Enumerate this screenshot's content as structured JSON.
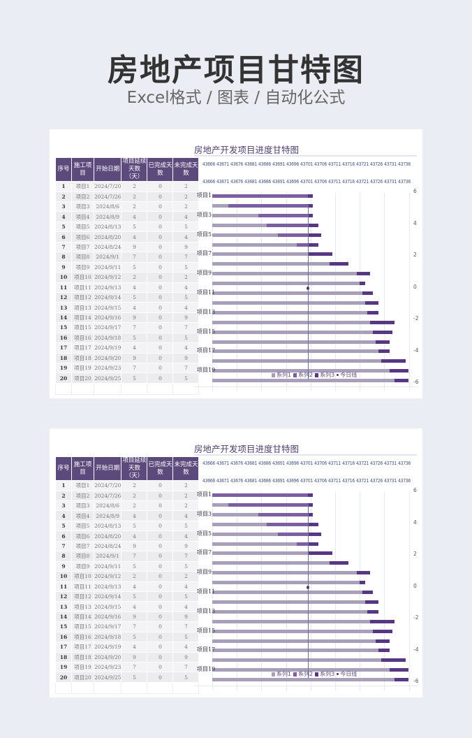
{
  "header": {
    "title": "房地产项目甘特图",
    "subtitle": "Excel格式 / 图表 / 自动化公式"
  },
  "colors": {
    "header": "#5c4a7c",
    "series1": "#a89fba",
    "series2": "#7b5fa0",
    "series3": "#573682",
    "today": "#4a3c6a"
  },
  "table": {
    "columns": [
      "序号",
      "施工项目",
      "开始日期",
      "项目延续天数（天）",
      "已完成天数",
      "未完成天数"
    ],
    "rows": [
      [
        "1",
        "项目1",
        "2024/7/20",
        "2",
        "0",
        "2"
      ],
      [
        "2",
        "项目2",
        "2024/7/26",
        "2",
        "0",
        "2"
      ],
      [
        "3",
        "项目3",
        "2024/8/6",
        "2",
        "0",
        "2"
      ],
      [
        "4",
        "项目4",
        "2024/8/9",
        "4",
        "0",
        "4"
      ],
      [
        "5",
        "项目5",
        "2024/8/13",
        "5",
        "0",
        "5"
      ],
      [
        "6",
        "项目6",
        "2024/8/20",
        "4",
        "0",
        "4"
      ],
      [
        "7",
        "项目7",
        "2024/8/24",
        "9",
        "0",
        "9"
      ],
      [
        "8",
        "项目8",
        "2024/9/1",
        "7",
        "0",
        "7"
      ],
      [
        "9",
        "项目9",
        "2024/9/11",
        "5",
        "0",
        "5"
      ],
      [
        "10",
        "项目10",
        "2024/9/12",
        "2",
        "0",
        "2"
      ],
      [
        "11",
        "项目11",
        "2024/9/13",
        "4",
        "0",
        "4"
      ],
      [
        "12",
        "项目12",
        "2024/9/14",
        "5",
        "0",
        "5"
      ],
      [
        "13",
        "项目13",
        "2024/9/15",
        "4",
        "0",
        "4"
      ],
      [
        "14",
        "项目14",
        "2024/9/16",
        "9",
        "0",
        "9"
      ],
      [
        "15",
        "项目15",
        "2024/9/17",
        "7",
        "0",
        "7"
      ],
      [
        "16",
        "项目16",
        "2024/9/18",
        "5",
        "0",
        "5"
      ],
      [
        "17",
        "项目17",
        "2024/9/19",
        "4",
        "0",
        "4"
      ],
      [
        "18",
        "项目18",
        "2024/9/20",
        "9",
        "0",
        "9"
      ],
      [
        "19",
        "项目19",
        "2024/9/23",
        "7",
        "0",
        "7"
      ],
      [
        "20",
        "项目20",
        "2024/9/25",
        "5",
        "0",
        "5"
      ]
    ]
  },
  "chart_data": {
    "type": "bar",
    "title": "房地产开发项目进度甘特图",
    "x_ticks": [
      "43666",
      "43671",
      "43676",
      "43681",
      "43686",
      "43691",
      "43696",
      "43701",
      "43706",
      "43711",
      "43716",
      "43721",
      "43726",
      "43731",
      "43736"
    ],
    "xlim_days": [
      0,
      72
    ],
    "y_ticks": [
      "6",
      "4",
      "2",
      "0",
      "-2",
      "-4",
      "-6"
    ],
    "category_labels": [
      "项目1",
      "",
      "项目3",
      "",
      "项目5",
      "",
      "项目7",
      "",
      "项目9",
      "",
      "项目11",
      "",
      "项目13",
      "",
      "项目15",
      "",
      "项目17",
      "",
      "项目19",
      ""
    ],
    "today_offset_days": 35,
    "today_y": 0,
    "series": [
      {
        "name": "系列1",
        "values": [
          0,
          6,
          17,
          20,
          24,
          31,
          35,
          43,
          53,
          54,
          55,
          56,
          57,
          58,
          59,
          60,
          61,
          62,
          65,
          67
        ]
      },
      {
        "name": "系列2",
        "values": [
          35,
          29,
          18,
          15,
          11,
          4,
          0,
          0,
          0,
          0,
          0,
          0,
          0,
          0,
          0,
          0,
          0,
          0,
          0,
          0
        ]
      },
      {
        "name": "系列3",
        "values": [
          2,
          2,
          2,
          4,
          5,
          4,
          9,
          7,
          5,
          2,
          4,
          5,
          4,
          9,
          7,
          5,
          4,
          9,
          7,
          5
        ]
      }
    ],
    "legend": [
      "系列1",
      "系列2",
      "系列3",
      "今日线"
    ],
    "legend_position": "bottom"
  }
}
